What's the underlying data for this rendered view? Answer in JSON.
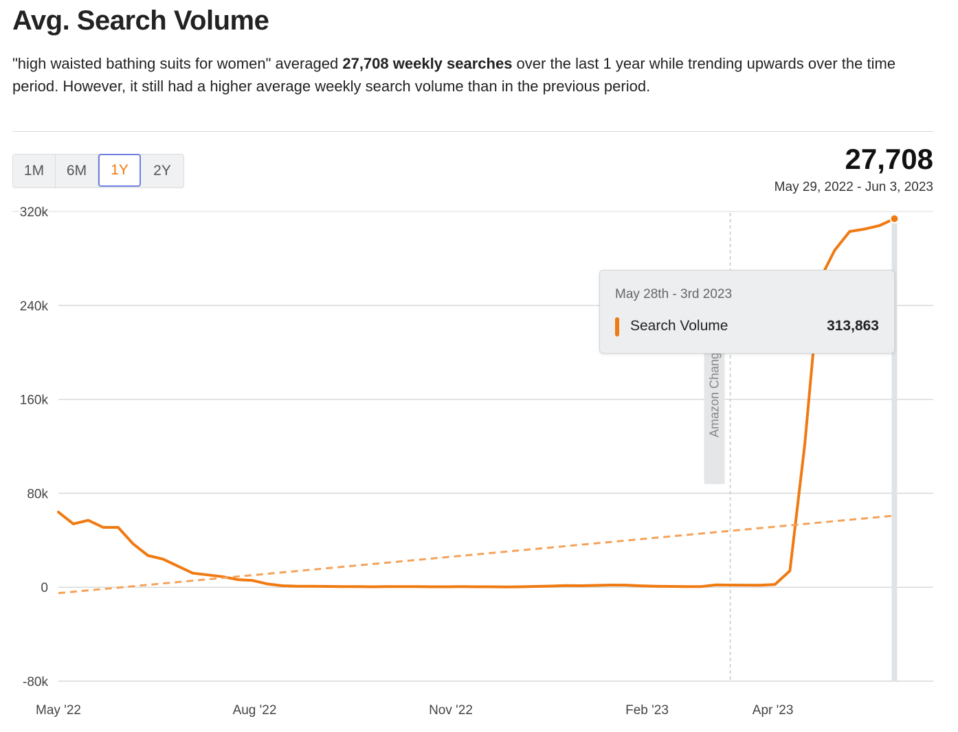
{
  "header": {
    "title": "Avg. Search Volume",
    "summary_before": "\"high waisted bathing suits for women\" averaged ",
    "summary_bold": "27,708 weekly searches",
    "summary_after": " over the last 1 year while trending upwards over the time period. However, it still had a higher average weekly search volume than in the previous period."
  },
  "range_selector": {
    "options": [
      "1M",
      "6M",
      "1Y",
      "2Y"
    ],
    "selected": "1Y"
  },
  "stat": {
    "value": "27,708",
    "date_range": "May 29, 2022 - Jun 3, 2023"
  },
  "tooltip": {
    "date": "May 28th - 3rd 2023",
    "series_label": "Search Volume",
    "value": "313,863"
  },
  "colors": {
    "series": "#f07a12",
    "trend": "#f4a259",
    "grid": "#d9d9d9",
    "annotation": "#c8c8c8",
    "hover_bar": "#dfe3e6"
  },
  "chart_data": {
    "type": "line",
    "ylim": [
      -80000,
      320000
    ],
    "yticks": [
      -80000,
      0,
      80000,
      160000,
      240000,
      320000
    ],
    "ytick_labels": [
      "-80k",
      "0",
      "80k",
      "160k",
      "240k",
      "320k"
    ],
    "x_range": [
      "2022-05-01",
      "2023-06-01"
    ],
    "x_ticks": [
      {
        "date": "2022-05-01",
        "label": "May '22"
      },
      {
        "date": "2022-08-01",
        "label": "Aug '22"
      },
      {
        "date": "2022-11-01",
        "label": "Nov '22"
      },
      {
        "date": "2023-02-01",
        "label": "Feb '23"
      },
      {
        "date": "2023-04-01",
        "label": "Apr '23"
      }
    ],
    "series": [
      {
        "name": "Search Volume",
        "points": [
          [
            "2022-05-01",
            64000
          ],
          [
            "2022-05-08",
            54000
          ],
          [
            "2022-05-15",
            57000
          ],
          [
            "2022-05-22",
            51000
          ],
          [
            "2022-05-29",
            51000
          ],
          [
            "2022-06-05",
            37000
          ],
          [
            "2022-06-12",
            27000
          ],
          [
            "2022-06-19",
            24000
          ],
          [
            "2022-06-26",
            18000
          ],
          [
            "2022-07-03",
            12000
          ],
          [
            "2022-07-10",
            10500
          ],
          [
            "2022-07-17",
            9000
          ],
          [
            "2022-07-24",
            6500
          ],
          [
            "2022-07-31",
            5800
          ],
          [
            "2022-08-07",
            2800
          ],
          [
            "2022-08-14",
            1300
          ],
          [
            "2022-08-21",
            900
          ],
          [
            "2022-08-28",
            800
          ],
          [
            "2022-09-04",
            700
          ],
          [
            "2022-09-11",
            600
          ],
          [
            "2022-09-18",
            500
          ],
          [
            "2022-09-25",
            400
          ],
          [
            "2022-10-02",
            500
          ],
          [
            "2022-10-09",
            500
          ],
          [
            "2022-10-16",
            500
          ],
          [
            "2022-10-23",
            400
          ],
          [
            "2022-10-30",
            400
          ],
          [
            "2022-11-06",
            500
          ],
          [
            "2022-11-13",
            400
          ],
          [
            "2022-11-20",
            400
          ],
          [
            "2022-11-27",
            300
          ],
          [
            "2022-12-04",
            400
          ],
          [
            "2022-12-11",
            700
          ],
          [
            "2022-12-18",
            1000
          ],
          [
            "2022-12-25",
            1400
          ],
          [
            "2023-01-01",
            1300
          ],
          [
            "2023-01-08",
            1600
          ],
          [
            "2023-01-15",
            1900
          ],
          [
            "2023-01-22",
            1800
          ],
          [
            "2023-01-29",
            1200
          ],
          [
            "2023-02-05",
            900
          ],
          [
            "2023-02-12",
            700
          ],
          [
            "2023-02-19",
            500
          ],
          [
            "2023-02-26",
            500
          ],
          [
            "2023-03-05",
            2000
          ],
          [
            "2023-03-12",
            1900
          ],
          [
            "2023-03-19",
            1800
          ],
          [
            "2023-03-26",
            1700
          ],
          [
            "2023-04-02",
            2400
          ],
          [
            "2023-04-09",
            14000
          ],
          [
            "2023-04-16",
            122000
          ],
          [
            "2023-04-23",
            262000
          ],
          [
            "2023-04-30",
            287000
          ],
          [
            "2023-05-07",
            303000
          ],
          [
            "2023-05-14",
            305000
          ],
          [
            "2023-05-21",
            308000
          ],
          [
            "2023-05-28",
            313863
          ]
        ]
      },
      {
        "name": "Trend",
        "style": "dashed",
        "points": [
          [
            "2022-05-01",
            -5000
          ],
          [
            "2023-05-28",
            61000
          ]
        ]
      }
    ],
    "annotations": [
      {
        "date": "2023-03-12",
        "label": "Amazon Change"
      }
    ],
    "highlight_date": "2023-05-28",
    "grid": true,
    "legend": "none"
  }
}
